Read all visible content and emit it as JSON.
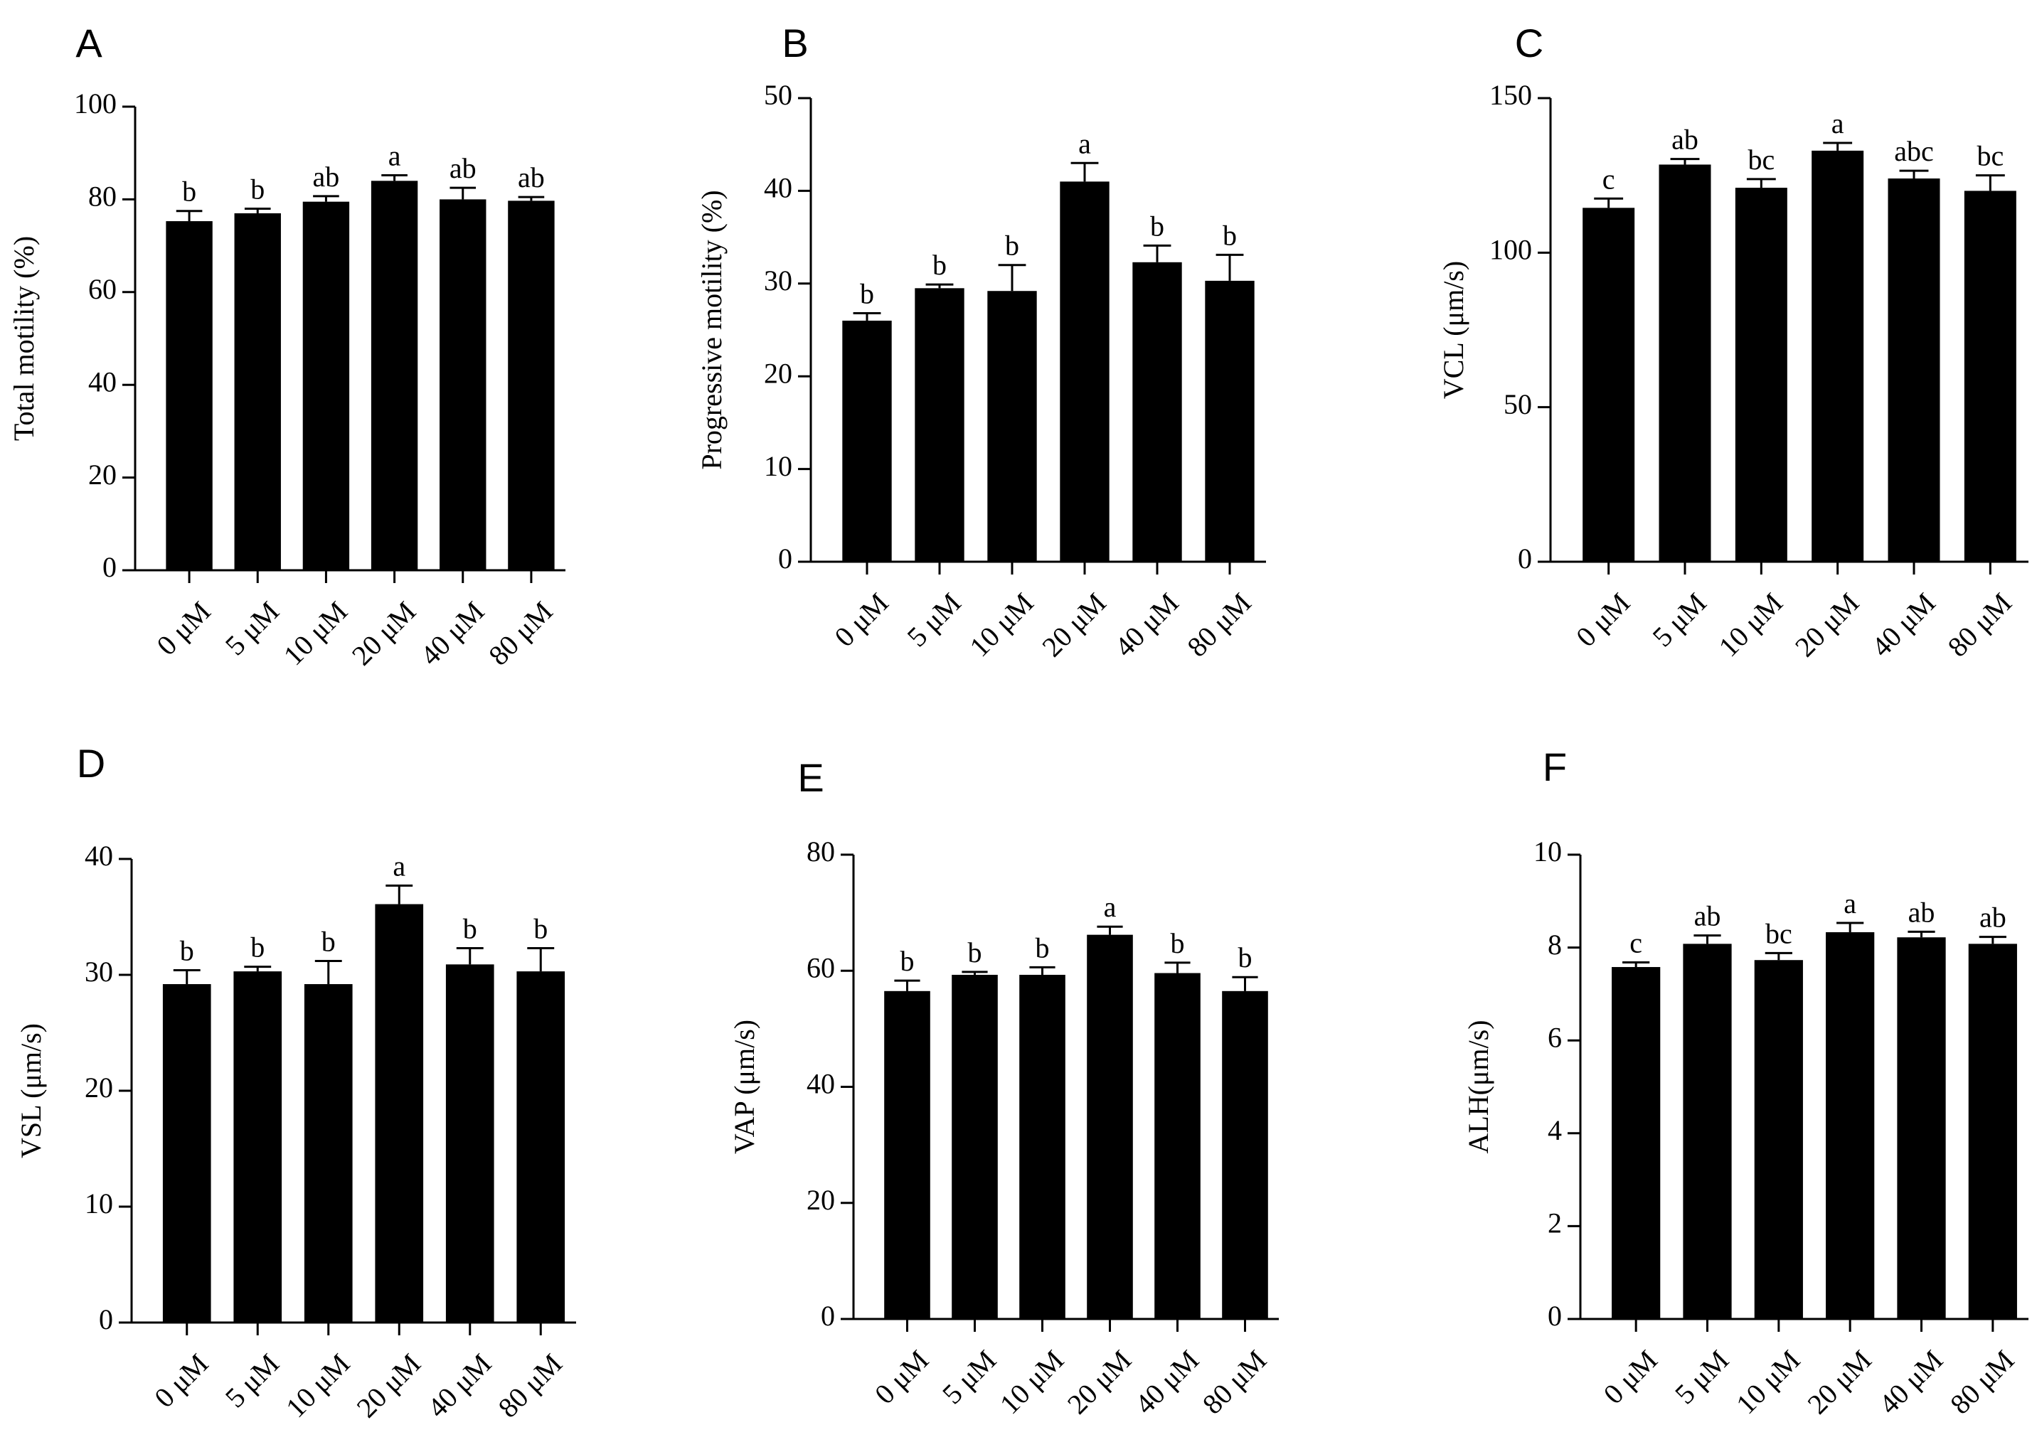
{
  "chart_data": [
    {
      "letter": "A",
      "type": "bar",
      "ylabel": "Total motility (%)",
      "ylim": [
        0,
        100
      ],
      "yticks": [
        0,
        20,
        40,
        60,
        80,
        100
      ],
      "categories": [
        "0 μM",
        "5 μM",
        "10 μM",
        "20 μM",
        "40 μM",
        "80 μM"
      ],
      "values": [
        75.3,
        77.0,
        79.5,
        84.0,
        80.0,
        79.7
      ],
      "errors": [
        2.2,
        1.0,
        1.2,
        1.2,
        2.5,
        0.8
      ],
      "sig": [
        "b",
        "b",
        "ab",
        "a",
        "ab",
        "ab"
      ]
    },
    {
      "letter": "B",
      "type": "bar",
      "ylabel": "Progressive motility (%)",
      "ylim": [
        0,
        50
      ],
      "yticks": [
        0,
        10,
        20,
        30,
        40,
        50
      ],
      "categories": [
        "0 μM",
        "5 μM",
        "10 μM",
        "20 μM",
        "40 μM",
        "80 μM"
      ],
      "values": [
        26.0,
        29.5,
        29.2,
        41.0,
        32.3,
        30.3
      ],
      "errors": [
        0.8,
        0.4,
        2.8,
        2.0,
        1.8,
        2.8
      ],
      "sig": [
        "b",
        "b",
        "b",
        "a",
        "b",
        "b"
      ]
    },
    {
      "letter": "C",
      "type": "bar",
      "ylabel": "VCL (μm/s)",
      "ylim": [
        0,
        150
      ],
      "yticks": [
        0,
        50,
        100,
        150
      ],
      "categories": [
        "0 μM",
        "5 μM",
        "10 μM",
        "20 μM",
        "40 μM",
        "80 μM"
      ],
      "values": [
        114.5,
        128.5,
        121.0,
        133.0,
        124.0,
        120.0
      ],
      "errors": [
        3.0,
        1.8,
        2.8,
        2.5,
        2.5,
        5.0
      ],
      "sig": [
        "c",
        "ab",
        "bc",
        "a",
        "abc",
        "bc"
      ]
    },
    {
      "letter": "D",
      "type": "bar",
      "ylabel": "VSL (μm/s)",
      "ylim": [
        0,
        40
      ],
      "yticks": [
        0,
        10,
        20,
        30,
        40
      ],
      "categories": [
        "0 μM",
        "5 μM",
        "10 μM",
        "20 μM",
        "40 μM",
        "80 μM"
      ],
      "values": [
        29.2,
        30.3,
        29.2,
        36.1,
        30.9,
        30.3
      ],
      "errors": [
        1.2,
        0.4,
        2.0,
        1.6,
        1.4,
        2.0
      ],
      "sig": [
        "b",
        "b",
        "b",
        "a",
        "b",
        "b"
      ]
    },
    {
      "letter": "E",
      "type": "bar",
      "ylabel": "VAP (μm/s)",
      "ylim": [
        0,
        80
      ],
      "yticks": [
        0,
        20,
        40,
        60,
        80
      ],
      "categories": [
        "0 μM",
        "5 μM",
        "10 μM",
        "20 μM",
        "40 μM",
        "80 μM"
      ],
      "values": [
        56.5,
        59.3,
        59.3,
        66.2,
        59.6,
        56.5
      ],
      "errors": [
        1.8,
        0.5,
        1.3,
        1.4,
        1.8,
        2.4
      ],
      "sig": [
        "b",
        "b",
        "b",
        "a",
        "b",
        "b"
      ]
    },
    {
      "letter": "F",
      "type": "bar",
      "ylabel": "ALH(μm/s)",
      "ylim": [
        0,
        10
      ],
      "yticks": [
        0,
        2,
        4,
        6,
        8,
        10
      ],
      "categories": [
        "0 μM",
        "5 μM",
        "10 μM",
        "20 μM",
        "40 μM",
        "80 μM"
      ],
      "values": [
        7.58,
        8.08,
        7.73,
        8.33,
        8.22,
        8.08
      ],
      "errors": [
        0.1,
        0.18,
        0.15,
        0.2,
        0.12,
        0.15
      ],
      "sig": [
        "c",
        "ab",
        "bc",
        "a",
        "ab",
        "ab"
      ]
    }
  ]
}
